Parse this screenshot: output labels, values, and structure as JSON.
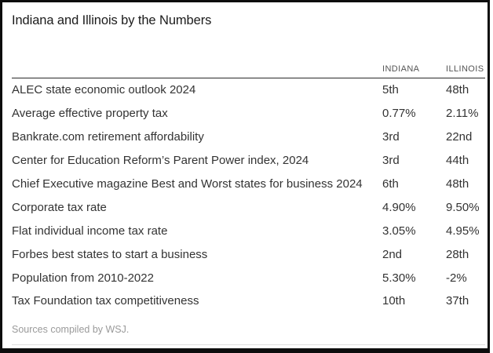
{
  "title": "Indiana and Illinois by the Numbers",
  "footer": {
    "sources": "Sources compiled by WSJ."
  },
  "colors": {
    "border": "#0d0d0d",
    "header_rule": "#2a2a2a",
    "light_rule": "#dedede",
    "body_text": "#333333",
    "header_text": "#555555",
    "muted_text": "#9a9a9a"
  },
  "chart_data": {
    "type": "table",
    "title": "Indiana and Illinois by the Numbers",
    "columns": [
      "INDIANA",
      "ILLINOIS"
    ],
    "rows": [
      {
        "label": "ALEC state economic outlook 2024",
        "indiana": "5th",
        "illinois": "48th"
      },
      {
        "label": "Average effective property tax",
        "indiana": "0.77%",
        "illinois": "2.11%"
      },
      {
        "label": "Bankrate.com retirement affordability",
        "indiana": "3rd",
        "illinois": "22nd"
      },
      {
        "label": "Center for Education Reform’s Parent Power index, 2024",
        "indiana": "3rd",
        "illinois": "44th"
      },
      {
        "label": "Chief Executive magazine Best and Worst states for business 2024",
        "indiana": "6th",
        "illinois": "48th"
      },
      {
        "label": "Corporate tax rate",
        "indiana": "4.90%",
        "illinois": "9.50%"
      },
      {
        "label": "Flat individual income tax rate",
        "indiana": "3.05%",
        "illinois": "4.95%"
      },
      {
        "label": "Forbes best states to start a business",
        "indiana": "2nd",
        "illinois": "28th"
      },
      {
        "label": "Population from 2010-2022",
        "indiana": "5.30%",
        "illinois": "-2%"
      },
      {
        "label": "Tax Foundation tax competitiveness",
        "indiana": "10th",
        "illinois": "37th"
      }
    ],
    "note": "Sources compiled by WSJ."
  }
}
